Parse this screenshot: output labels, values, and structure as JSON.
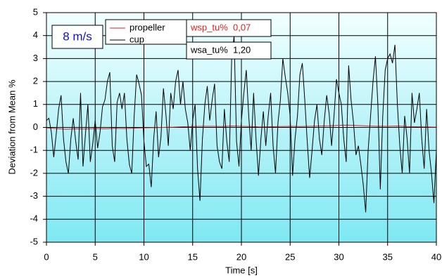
{
  "chart_data": {
    "type": "line",
    "xlabel": "Time [s]",
    "ylabel": "Deviation from Mean %",
    "xlim": [
      0,
      40
    ],
    "xticks": [
      0,
      5,
      10,
      15,
      20,
      25,
      30,
      35,
      40
    ],
    "ylim": [
      -5,
      5
    ],
    "yticks": [
      -5,
      -4,
      -3,
      -2,
      -1,
      0,
      1,
      2,
      3,
      4,
      5
    ],
    "grid": true,
    "annotations": [
      "8 m/s",
      "wsp_tu%  0,07",
      "wsa_tu%  1,20"
    ],
    "series": [
      {
        "name": "propeller",
        "color": "#e02020",
        "x": [
          0,
          1,
          2,
          3,
          4,
          5,
          6,
          7,
          8,
          9,
          10,
          11,
          12,
          13,
          14,
          15,
          16,
          17,
          18,
          19,
          20,
          21,
          22,
          23,
          24,
          25,
          26,
          27,
          28,
          29,
          30,
          31,
          32,
          33,
          34,
          35,
          36,
          37,
          38,
          39,
          40
        ],
        "values": [
          -0.02,
          -0.05,
          -0.08,
          -0.06,
          -0.07,
          -0.05,
          -0.06,
          -0.04,
          -0.05,
          -0.03,
          -0.02,
          -0.01,
          0,
          0.01,
          0.03,
          0.04,
          0.05,
          0.05,
          0.04,
          0.06,
          0.05,
          0.04,
          0.02,
          0.03,
          0.04,
          0.05,
          0.04,
          0.05,
          0.06,
          0.07,
          0.09,
          0.1,
          0.08,
          0.06,
          0.05,
          0.05,
          0.06,
          0.04,
          0.03,
          0.02,
          0.01
        ]
      },
      {
        "name": "cup",
        "color": "#000000",
        "x": [
          0,
          0.25,
          0.5,
          0.75,
          1,
          1.25,
          1.5,
          1.75,
          2,
          2.25,
          2.5,
          2.75,
          3,
          3.25,
          3.5,
          3.75,
          4,
          4.25,
          4.5,
          4.75,
          5,
          5.25,
          5.5,
          5.75,
          6,
          6.25,
          6.5,
          6.75,
          7,
          7.25,
          7.5,
          7.75,
          8,
          8.25,
          8.5,
          8.75,
          9,
          9.25,
          9.5,
          9.75,
          10,
          10.25,
          10.5,
          10.75,
          11,
          11.25,
          11.5,
          11.75,
          12,
          12.25,
          12.5,
          12.75,
          13,
          13.25,
          13.5,
          13.75,
          14,
          14.25,
          14.5,
          14.75,
          15,
          15.25,
          15.5,
          15.75,
          16,
          16.25,
          16.5,
          16.75,
          17,
          17.25,
          17.5,
          17.75,
          18,
          18.25,
          18.5,
          18.75,
          19,
          19.25,
          19.5,
          19.75,
          20,
          20.25,
          20.5,
          20.75,
          21,
          21.25,
          21.5,
          21.75,
          22,
          22.25,
          22.5,
          22.75,
          23,
          23.25,
          23.5,
          23.75,
          24,
          24.25,
          24.5,
          24.75,
          25,
          25.25,
          25.5,
          25.75,
          26,
          26.25,
          26.5,
          26.75,
          27,
          27.25,
          27.5,
          27.75,
          28,
          28.25,
          28.5,
          28.75,
          29,
          29.25,
          29.5,
          29.75,
          30,
          30.25,
          30.5,
          30.75,
          31,
          31.25,
          31.5,
          31.75,
          32,
          32.25,
          32.5,
          32.75,
          33,
          33.25,
          33.5,
          33.75,
          34,
          34.25,
          34.5,
          34.75,
          35,
          35.25,
          35.5,
          35.75,
          36,
          36.25,
          36.5,
          36.75,
          37,
          37.25,
          37.5,
          37.75,
          38,
          38.25,
          38.5,
          38.75,
          39,
          39.25,
          39.5,
          39.75,
          40
        ],
        "values": [
          0.3,
          0.4,
          -0.2,
          -1.3,
          -0.3,
          0.8,
          1.4,
          -0.5,
          -1.5,
          -2.0,
          -0.5,
          0.4,
          -0.6,
          -1.4,
          1.5,
          -1.7,
          -0.3,
          1.0,
          -1.5,
          -0.7,
          0.3,
          -0.9,
          -0.2,
          0.9,
          1.2,
          2.0,
          2.4,
          -0.8,
          -1.5,
          1.1,
          1.5,
          0.8,
          1.5,
          -0.5,
          -1.6,
          -2.0,
          0.5,
          2.3,
          1.9,
          1.4,
          -0.6,
          -1.7,
          -1.6,
          -2.6,
          -0.5,
          0.7,
          -1.3,
          -0.4,
          1.7,
          0.6,
          -0.8,
          1.5,
          0.8,
          2.0,
          2.5,
          1.0,
          2.0,
          0.8,
          0.2,
          -1.0,
          0.3,
          1.0,
          -1.8,
          -3.2,
          -0.5,
          1.0,
          1.8,
          0.3,
          1.2,
          1.9,
          -0.8,
          -1.5,
          -1.8,
          0.8,
          -0.6,
          -1.5,
          3.0,
          4.0,
          -0.6,
          -1.7,
          0.3,
          1.5,
          2.5,
          0.5,
          -1.0,
          1.5,
          -0.5,
          -2.1,
          -0.5,
          0.7,
          -0.8,
          0.5,
          1.5,
          -0.8,
          -2.0,
          0.2,
          1.2,
          3.0,
          2.2,
          1.5,
          0.5,
          -2.1,
          -0.5,
          0.5,
          2.3,
          2.8,
          1.2,
          -0.6,
          -2.2,
          -1.0,
          0.3,
          1.0,
          -0.5,
          -1.2,
          0.3,
          1.4,
          0.6,
          -0.8,
          0.5,
          2.1,
          1.5,
          1.0,
          -0.5,
          -1.5,
          2.7,
          1.2,
          0.2,
          -1.2,
          -0.8,
          -1.6,
          -2.5,
          -3.7,
          -1.0,
          0.5,
          2.0,
          3.1,
          1.0,
          -2.7,
          0.5,
          2.5,
          3.0,
          3.2,
          2.8,
          3.6,
          1.0,
          -0.8,
          -2.0,
          0.5,
          -0.5,
          -2.0,
          1.5,
          0.2,
          0.8,
          1.5,
          -0.5,
          -1.8,
          0.8,
          -1.0,
          -2.0,
          -3.3,
          -1.0
        ]
      }
    ]
  }
}
